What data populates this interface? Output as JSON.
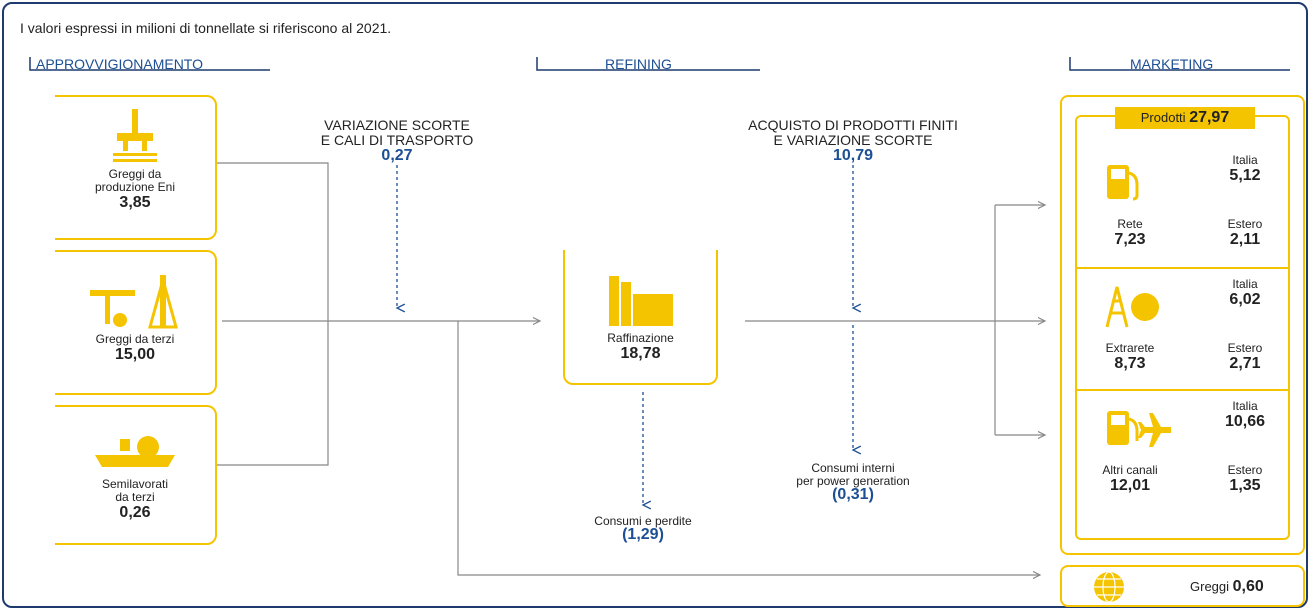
{
  "note": "I valori espressi in milioni di tonnellate si riferiscono al 2021.",
  "sections": [
    "APPROVVIGIONAMENTO",
    "REFINING",
    "MARKETING"
  ],
  "supply": [
    {
      "label_lines": [
        "Greggi da",
        "produzione Eni"
      ],
      "value": "3,85"
    },
    {
      "label_lines": [
        "Greggi da terzi"
      ],
      "value": "15,00"
    },
    {
      "label_lines": [
        "Semilavorati",
        "da terzi"
      ],
      "value": "0,26"
    }
  ],
  "stock_change": {
    "label_lines": [
      "VARIAZIONE SCORTE",
      "E CALI DI TRASPORTO"
    ],
    "value": "0,27"
  },
  "refining": {
    "label": "Raffinazione",
    "value": "18,78"
  },
  "losses": {
    "label": "Consumi e perdite",
    "value": "(1,29)"
  },
  "purchase": {
    "label_lines": [
      "ACQUISTO DI PRODOTTI FINITI",
      "E VARIAZIONE SCORTE"
    ],
    "value": "10,79"
  },
  "internal_use": {
    "label_lines": [
      "Consumi interni",
      "per power generation"
    ],
    "value": "(0,31)"
  },
  "products": {
    "label": "Prodotti",
    "value": "27,97"
  },
  "channels": [
    {
      "name": "Rete",
      "value": "7,23",
      "italy_label": "Italia",
      "italy": "5,12",
      "abroad_label": "Estero",
      "abroad": "2,11"
    },
    {
      "name": "Extrarete",
      "value": "8,73",
      "italy_label": "Italia",
      "italy": "6,02",
      "abroad_label": "Estero",
      "abroad": "2,71"
    },
    {
      "name": "Altri canali",
      "value": "12,01",
      "italy_label": "Italia",
      "italy": "10,66",
      "abroad_label": "Estero",
      "abroad": "1,35"
    }
  ],
  "crude_sales": {
    "label": "Greggi",
    "value": "0,60"
  }
}
